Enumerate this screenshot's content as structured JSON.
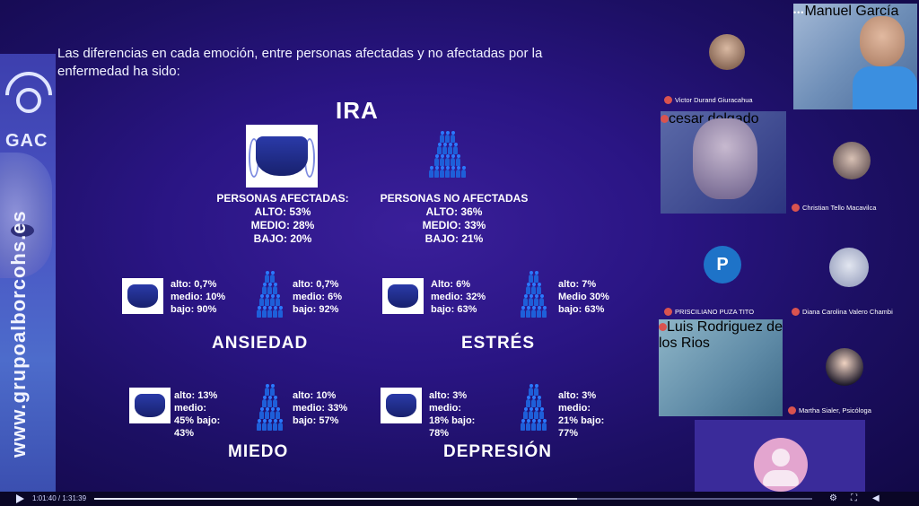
{
  "colors": {
    "slide_bg": "#2a1584",
    "accent_blue": "#1e5fd9",
    "mic_off": "#d9534f"
  },
  "sidebar": {
    "logo_text": "GAC",
    "url_text": "www.grupoalborcohs.es"
  },
  "intro": "Las diferencias en cada emoción, entre personas afectadas y no afectadas por la enfermedad ha sido:",
  "ira": {
    "title": "IRA",
    "afectadas": {
      "label": "PERSONAS AFECTADAS:",
      "alto": "ALTO: 53%",
      "medio": "MEDIO: 28%",
      "bajo": "BAJO: 20%"
    },
    "no_afectadas": {
      "label": "PERSONAS NO AFECTADAS",
      "alto": "ALTO: 36%",
      "medio": "MEDIO: 33%",
      "bajo": "BAJO: 21%"
    }
  },
  "ansiedad": {
    "title": "ANSIEDAD",
    "afectadas": {
      "l1": "alto: 0,7%",
      "l2": "medio: 10%",
      "l3": "bajo: 90%"
    },
    "no_afectadas": {
      "l1": "alto: 0,7%",
      "l2": "medio: 6%",
      "l3": "bajo: 92%"
    }
  },
  "estres": {
    "title": "ESTRÉS",
    "afectadas": {
      "l1": "Alto: 6%",
      "l2": "medio: 32%",
      "l3": "bajo: 63%"
    },
    "no_afectadas": {
      "l1": "alto: 7%",
      "l2": "Medio 30%",
      "l3": "bajo: 63%"
    }
  },
  "miedo": {
    "title": "MIEDO",
    "afectadas": {
      "l1": "alto: 13%",
      "l2": "medio:",
      "l3": "45% bajo:",
      "l4": "43%"
    },
    "no_afectadas": {
      "l1": "alto: 10%",
      "l2": "medio: 33%",
      "l3": "bajo: 57%"
    }
  },
  "depresion": {
    "title": "DEPRESIÓN",
    "afectadas": {
      "l1": "alto: 3%",
      "l2": "medio:",
      "l3": "18% bajo:",
      "l4": "78%"
    },
    "no_afectadas": {
      "l1": "alto: 3%",
      "l2": "medio:",
      "l3": "21%  bajo:",
      "l4": "77%"
    }
  },
  "participants": [
    {
      "name": "Victor Durand Giuracahua"
    },
    {
      "name": "Manuel García"
    },
    {
      "name": "cesar delgado"
    },
    {
      "name": "Christian Tello Macavilca"
    },
    {
      "name": "PRISCILIANO PUZA TITO",
      "initial": "P"
    },
    {
      "name": "Diana Carolina Valero Chambi"
    },
    {
      "name": "Luis Rodriguez de los Rios"
    },
    {
      "name": "Martha Sialer, Psicóloga"
    }
  ],
  "player": {
    "time": "1:01:40 / 1:31:39",
    "progress": 0.673
  }
}
